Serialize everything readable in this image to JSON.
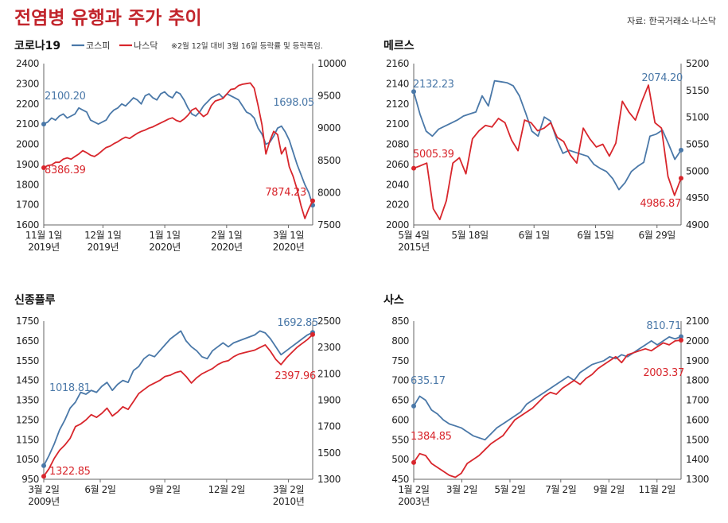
{
  "title": "전염병 유행과 주가 추이",
  "source": "자료: 한국거래소·나스닥",
  "colors": {
    "kospi": "#4a78a8",
    "nasdaq": "#d8262c",
    "title": "#c2252c"
  },
  "legend": {
    "kospi": "코스피",
    "nasdaq": "나스닥"
  },
  "note": "※2월 12일 대비 3월 16일 등락률 및 등락폭임.",
  "chart_data": [
    {
      "type": "line",
      "title": "코로나19",
      "y_left": {
        "ticks": [
          "2400",
          "2300",
          "2200",
          "2100",
          "2000",
          "1900",
          "1800",
          "1700",
          "1600"
        ],
        "range": [
          1600,
          2400
        ]
      },
      "y_right": {
        "ticks": [
          "10000",
          "9500",
          "9000",
          "8500",
          "8000",
          "7500"
        ],
        "range": [
          7500,
          10000
        ]
      },
      "x_ticks": [
        {
          "pos": 0.0,
          "line1": "11월 1일",
          "line2": "2019년"
        },
        {
          "pos": 0.22,
          "line1": "12월 1일",
          "line2": "2019년"
        },
        {
          "pos": 0.45,
          "line1": "1월 1일",
          "line2": "2020년"
        },
        {
          "pos": 0.68,
          "line1": "2월 1일",
          "line2": "2020년"
        },
        {
          "pos": 0.91,
          "line1": "3월 1일",
          "line2": "2020년"
        }
      ],
      "series": [
        {
          "name": "코스피",
          "axis": "left",
          "values": [
            2100.2,
            2110,
            2130,
            2120,
            2140,
            2150,
            2130,
            2140,
            2150,
            2180,
            2170,
            2160,
            2120,
            2110,
            2100,
            2110,
            2120,
            2150,
            2170,
            2180,
            2200,
            2190,
            2210,
            2230,
            2220,
            2200,
            2240,
            2250,
            2230,
            2220,
            2250,
            2260,
            2240,
            2230,
            2260,
            2250,
            2220,
            2180,
            2150,
            2140,
            2160,
            2190,
            2210,
            2230,
            2240,
            2250,
            2230,
            2250,
            2240,
            2230,
            2220,
            2190,
            2160,
            2150,
            2130,
            2080,
            2050,
            2000,
            2010,
            2040,
            2080,
            2090,
            2060,
            2020,
            1960,
            1900,
            1850,
            1800,
            1760,
            1698.05
          ]
        },
        {
          "name": "나스닥",
          "axis": "right",
          "values": [
            8386.39,
            8420,
            8430,
            8470,
            8470,
            8520,
            8540,
            8520,
            8560,
            8600,
            8650,
            8620,
            8580,
            8560,
            8600,
            8650,
            8700,
            8720,
            8760,
            8790,
            8830,
            8860,
            8840,
            8880,
            8920,
            8950,
            8970,
            9000,
            9020,
            9050,
            9080,
            9110,
            9140,
            9160,
            9120,
            9100,
            9140,
            9200,
            9280,
            9310,
            9240,
            9180,
            9220,
            9350,
            9420,
            9440,
            9460,
            9530,
            9600,
            9610,
            9660,
            9680,
            9690,
            9700,
            9620,
            9350,
            9050,
            8600,
            8800,
            8950,
            8900,
            8600,
            8700,
            8400,
            8250,
            8050,
            7800,
            7600,
            7750,
            7874.23
          ]
        }
      ],
      "labels": {
        "kospi_start": "2100.20",
        "nasdaq_start": "8386.39",
        "kospi_end": "1698.05",
        "nasdaq_end": "7874.23"
      }
    },
    {
      "type": "line",
      "title": "메르스",
      "y_left": {
        "ticks": [
          "2160",
          "2140",
          "2120",
          "2100",
          "2080",
          "2060",
          "2040",
          "2020",
          "2000"
        ],
        "range": [
          2000,
          2160
        ]
      },
      "y_right": {
        "ticks": [
          "5200",
          "5150",
          "5100",
          "5050",
          "5000",
          "4950",
          "4900"
        ],
        "range": [
          4900,
          5200
        ]
      },
      "x_ticks": [
        {
          "pos": 0.0,
          "line1": "5월 4일",
          "line2": "2015년"
        },
        {
          "pos": 0.21,
          "line1": "5월 18일",
          "line2": ""
        },
        {
          "pos": 0.45,
          "line1": "6월 1일",
          "line2": ""
        },
        {
          "pos": 0.68,
          "line1": "6월 15일",
          "line2": ""
        },
        {
          "pos": 0.91,
          "line1": "6월 29일",
          "line2": ""
        }
      ],
      "series": [
        {
          "name": "코스피",
          "axis": "left",
          "values": [
            2132.23,
            2110,
            2093,
            2088,
            2095,
            2098,
            2101,
            2104,
            2108,
            2110,
            2112,
            2128,
            2118,
            2143,
            2142,
            2141,
            2138,
            2128,
            2111,
            2093,
            2088,
            2107,
            2103,
            2085,
            2071,
            2074,
            2072,
            2070,
            2068,
            2060,
            2056,
            2053,
            2046,
            2035,
            2042,
            2053,
            2058,
            2062,
            2088,
            2090,
            2094,
            2080,
            2065,
            2074.2
          ]
        },
        {
          "name": "나스닥",
          "axis": "right",
          "values": [
            5005.39,
            5010,
            5015,
            4930,
            4910,
            4945,
            5015,
            5025,
            4995,
            5060,
            5075,
            5085,
            5082,
            5098,
            5090,
            5058,
            5038,
            5095,
            5090,
            5075,
            5080,
            5090,
            5063,
            5055,
            5030,
            5015,
            5080,
            5060,
            5045,
            5050,
            5028,
            5052,
            5130,
            5110,
            5095,
            5130,
            5160,
            5090,
            5080,
            4990,
            4955,
            4986.87
          ]
        }
      ],
      "labels": {
        "kospi_start": "2132.23",
        "nasdaq_start": "5005.39",
        "kospi_end": "2074.20",
        "nasdaq_end": "4986.87"
      }
    },
    {
      "type": "line",
      "title": "신종플루",
      "y_left": {
        "ticks": [
          "1750",
          "1650",
          "1550",
          "1450",
          "1350",
          "1250",
          "1150",
          "1050",
          "950"
        ],
        "range": [
          950,
          1750
        ]
      },
      "y_right": {
        "ticks": [
          "2500",
          "2300",
          "2100",
          "1900",
          "1700",
          "1500",
          "1300"
        ],
        "range": [
          1300,
          2500
        ]
      },
      "x_ticks": [
        {
          "pos": 0.0,
          "line1": "3월 2일",
          "line2": "2009년"
        },
        {
          "pos": 0.21,
          "line1": "6월 2일",
          "line2": ""
        },
        {
          "pos": 0.45,
          "line1": "9월 2일",
          "line2": ""
        },
        {
          "pos": 0.68,
          "line1": "12월 2일",
          "line2": ""
        },
        {
          "pos": 0.91,
          "line1": "3월 2일",
          "line2": "2010년"
        }
      ],
      "series": [
        {
          "name": "코스피",
          "axis": "left",
          "values": [
            1018.81,
            1070,
            1130,
            1200,
            1250,
            1310,
            1340,
            1390,
            1380,
            1400,
            1390,
            1420,
            1440,
            1400,
            1430,
            1450,
            1440,
            1500,
            1520,
            1560,
            1580,
            1570,
            1600,
            1630,
            1660,
            1680,
            1700,
            1650,
            1620,
            1600,
            1570,
            1560,
            1600,
            1620,
            1640,
            1620,
            1640,
            1650,
            1660,
            1670,
            1680,
            1700,
            1690,
            1660,
            1620,
            1580,
            1600,
            1620,
            1640,
            1660,
            1680,
            1692.85
          ]
        },
        {
          "name": "나스닥",
          "axis": "right",
          "values": [
            1322.85,
            1380,
            1460,
            1520,
            1560,
            1610,
            1700,
            1720,
            1750,
            1790,
            1770,
            1800,
            1840,
            1780,
            1810,
            1850,
            1830,
            1890,
            1950,
            1980,
            2010,
            2030,
            2050,
            2080,
            2090,
            2110,
            2120,
            2080,
            2030,
            2070,
            2100,
            2120,
            2140,
            2170,
            2190,
            2200,
            2230,
            2250,
            2260,
            2270,
            2280,
            2300,
            2320,
            2270,
            2210,
            2170,
            2220,
            2260,
            2300,
            2330,
            2360,
            2397.96
          ]
        }
      ],
      "labels": {
        "kospi_start": "1018.81",
        "nasdaq_start": "1322.85",
        "kospi_end": "1692.85",
        "nasdaq_end": "2397.96"
      }
    },
    {
      "type": "line",
      "title": "사스",
      "y_left": {
        "ticks": [
          "850",
          "800",
          "750",
          "700",
          "650",
          "600",
          "550",
          "500",
          "450"
        ],
        "range": [
          450,
          850
        ]
      },
      "y_right": {
        "ticks": [
          "2100",
          "2000",
          "1900",
          "1800",
          "1700",
          "1600",
          "1500",
          "1400",
          "1300"
        ],
        "range": [
          1300,
          2100
        ]
      },
      "x_ticks": [
        {
          "pos": 0.0,
          "line1": "1월 2일",
          "line2": "2003년"
        },
        {
          "pos": 0.18,
          "line1": "3월 2일",
          "line2": ""
        },
        {
          "pos": 0.36,
          "line1": "5월 2일",
          "line2": ""
        },
        {
          "pos": 0.55,
          "line1": "7월 2일",
          "line2": ""
        },
        {
          "pos": 0.73,
          "line1": "9월 2일",
          "line2": ""
        },
        {
          "pos": 0.91,
          "line1": "11월 2일",
          "line2": ""
        }
      ],
      "series": [
        {
          "name": "코스피",
          "axis": "left",
          "values": [
            635.17,
            660,
            650,
            625,
            615,
            600,
            590,
            585,
            580,
            570,
            560,
            555,
            550,
            565,
            580,
            590,
            600,
            610,
            620,
            640,
            650,
            660,
            670,
            680,
            690,
            700,
            710,
            700,
            720,
            730,
            740,
            745,
            750,
            760,
            755,
            765,
            760,
            770,
            780,
            790,
            800,
            790,
            800,
            810,
            805,
            810.71
          ]
        },
        {
          "name": "나스닥",
          "axis": "right",
          "values": [
            1384.85,
            1430,
            1420,
            1380,
            1360,
            1340,
            1320,
            1310,
            1330,
            1380,
            1400,
            1420,
            1450,
            1480,
            1500,
            1520,
            1560,
            1600,
            1620,
            1640,
            1660,
            1690,
            1720,
            1740,
            1730,
            1760,
            1780,
            1800,
            1780,
            1810,
            1830,
            1860,
            1880,
            1900,
            1920,
            1890,
            1930,
            1940,
            1950,
            1960,
            1950,
            1970,
            1990,
            1980,
            2000,
            2003.37
          ]
        }
      ],
      "labels": {
        "kospi_start": "635.17",
        "nasdaq_start": "1384.85",
        "kospi_end": "810.71",
        "nasdaq_end": "2003.37"
      }
    }
  ]
}
